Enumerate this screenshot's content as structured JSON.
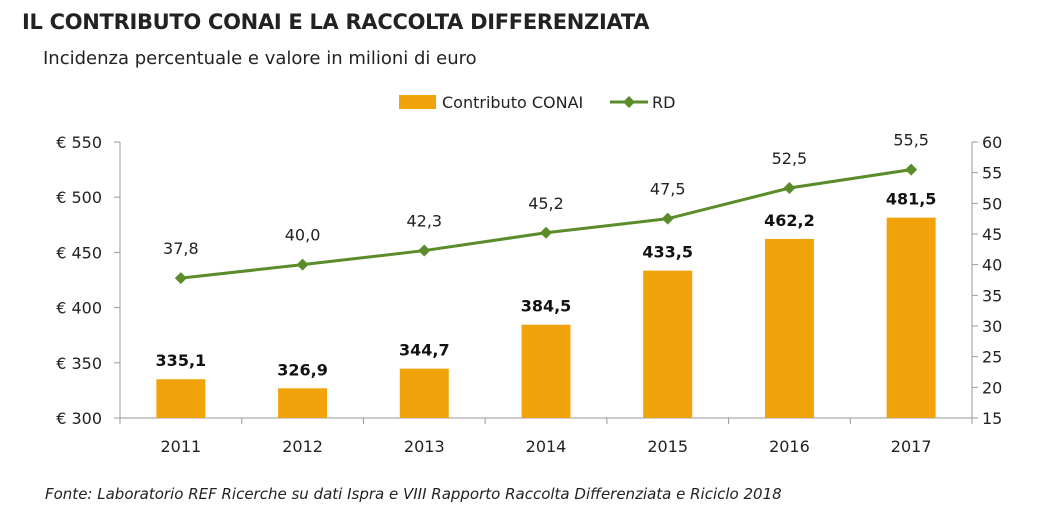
{
  "title": "IL CONTRIBUTO CONAI E LA RACCOLTA DIFFERENZIATA",
  "subtitle": "Incidenza percentuale e valore in milioni di euro",
  "footer": "Fonte: Laboratorio REF Ricerche su dati Ispra e VIII Rapporto Raccolta Differenziata e Riciclo 2018",
  "colors": {
    "bar": "#f0a30a",
    "line": "#5b8c2a",
    "axis": "#9a9a9a"
  },
  "chart_data": {
    "type": "bar",
    "categories": [
      "2011",
      "2012",
      "2013",
      "2014",
      "2015",
      "2016",
      "2017"
    ],
    "series": [
      {
        "name": "Contributo CONAI",
        "type": "bar",
        "axis": "left",
        "values": [
          335.1,
          326.9,
          344.7,
          384.5,
          433.5,
          462.2,
          481.5
        ],
        "labels": [
          "335,1",
          "326,9",
          "344,7",
          "384,5",
          "433,5",
          "462,2",
          "481,5"
        ]
      },
      {
        "name": "RD",
        "type": "line",
        "axis": "right",
        "values": [
          37.8,
          40.0,
          42.3,
          45.2,
          47.5,
          52.5,
          55.5
        ],
        "labels": [
          "37,8",
          "40,0",
          "42,3",
          "45,2",
          "47,5",
          "52,5",
          "55,5"
        ]
      }
    ],
    "left_axis": {
      "min": 300,
      "max": 550,
      "ticks": [
        300,
        350,
        400,
        450,
        500,
        550
      ],
      "tick_labels": [
        "€ 300",
        "€ 350",
        "€ 400",
        "€ 450",
        "€ 500",
        "€ 550"
      ]
    },
    "right_axis": {
      "min": 15,
      "max": 60,
      "ticks": [
        15,
        20,
        25,
        30,
        35,
        40,
        45,
        50,
        55,
        60
      ],
      "tick_labels": [
        "15",
        "20",
        "25",
        "30",
        "35",
        "40",
        "45",
        "50",
        "55",
        "60"
      ]
    },
    "legend": {
      "position": "top",
      "entries": [
        "Contributo CONAI",
        "RD"
      ]
    }
  }
}
